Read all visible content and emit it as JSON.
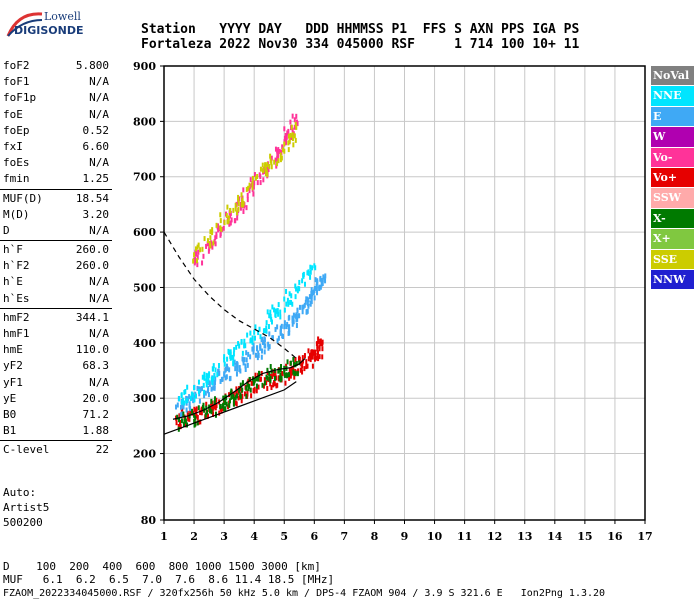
{
  "logo": {
    "line1": "Lowell",
    "line2": "DIGISONDE"
  },
  "header": {
    "line1": "Station   YYYY DAY   DDD HHMMSS P1  FFS S AXN PPS IGA PS",
    "line2": "Fortaleza 2022 Nov30 334 045000 RSF     1 714 100 10+ 11"
  },
  "params": [
    {
      "group": [
        {
          "k": "foF2",
          "v": "5.800"
        },
        {
          "k": "foF1",
          "v": "N/A"
        },
        {
          "k": "foF1p",
          "v": "N/A"
        },
        {
          "k": "foE",
          "v": "N/A"
        },
        {
          "k": "foEp",
          "v": "0.52"
        },
        {
          "k": "fxI",
          "v": "6.60"
        },
        {
          "k": "foEs",
          "v": "N/A"
        },
        {
          "k": "fmin",
          "v": "1.25"
        }
      ]
    },
    {
      "group": [
        {
          "k": "MUF(D)",
          "v": "18.54"
        },
        {
          "k": "M(D)",
          "v": "3.20"
        },
        {
          "k": "D",
          "v": "N/A"
        }
      ]
    },
    {
      "group": [
        {
          "k": "h`F",
          "v": "260.0"
        },
        {
          "k": "h`F2",
          "v": "260.0"
        },
        {
          "k": "h`E",
          "v": "N/A"
        },
        {
          "k": "h`Es",
          "v": "N/A"
        }
      ]
    },
    {
      "group": [
        {
          "k": "hmF2",
          "v": "344.1"
        },
        {
          "k": "hmF1",
          "v": "N/A"
        },
        {
          "k": "hmE",
          "v": "110.0"
        },
        {
          "k": "yF2",
          "v": "68.3"
        },
        {
          "k": "yF1",
          "v": "N/A"
        },
        {
          "k": "yE",
          "v": "20.0"
        },
        {
          "k": "B0",
          "v": "71.2"
        },
        {
          "k": "B1",
          "v": "1.88"
        }
      ]
    },
    {
      "group": [
        {
          "k": "C-level",
          "v": "22"
        }
      ]
    }
  ],
  "auto": [
    "Auto:",
    "Artist5",
    "500200"
  ],
  "bottom": {
    "d_row": "D    100  200  400  600  800 1000 1500 3000 [km]",
    "muf_row": "MUF   6.1  6.2  6.5  7.0  7.6  8.6 11.4 18.5 [MHz]",
    "footer": "FZAOM_2022334045000.RSF / 320fx256h 50 kHz 5.0 km / DPS-4 FZAOM 904 / 3.9 S 321.6 E   Ion2Png 1.3.20"
  },
  "legend": [
    {
      "label": "NoVal",
      "color": "#808080"
    },
    {
      "label": "NNE",
      "color": "#00e5ff"
    },
    {
      "label": "E",
      "color": "#3fa9f5"
    },
    {
      "label": "W",
      "color": "#b000b0"
    },
    {
      "label": "Vo-",
      "color": "#ff3399"
    },
    {
      "label": "Vo+",
      "color": "#e60000"
    },
    {
      "label": "SSW",
      "color": "#ffaaaa"
    },
    {
      "label": "X-",
      "color": "#007a00"
    },
    {
      "label": "X+",
      "color": "#80c840"
    },
    {
      "label": "SSE",
      "color": "#cccc00"
    },
    {
      "label": "NNW",
      "color": "#2020d0"
    }
  ],
  "chart_data": {
    "type": "scatter",
    "xlabel": "",
    "ylabel": "",
    "xlim": [
      1,
      17
    ],
    "ylim": [
      80,
      900
    ],
    "xticks": [
      1,
      2,
      3,
      4,
      5,
      6,
      7,
      8,
      9,
      10,
      11,
      12,
      13,
      14,
      15,
      16,
      17
    ],
    "yticks": [
      80,
      200,
      300,
      400,
      500,
      600,
      700,
      800,
      900
    ],
    "grid": true,
    "legend_placement": "right",
    "traces": [
      {
        "name": "",
        "color": "#e60000",
        "x": [
          1.4,
          1.8,
          2.2,
          2.6,
          3.0,
          3.4,
          3.8,
          4.2,
          4.6,
          5.0,
          5.3,
          5.6,
          5.9,
          6.1,
          6.2
        ],
        "y": [
          265,
          270,
          275,
          285,
          295,
          310,
          325,
          335,
          340,
          345,
          355,
          365,
          380,
          390,
          400
        ]
      },
      {
        "name": "",
        "color": "#3fa9f5",
        "x": [
          1.4,
          1.8,
          2.2,
          2.6,
          3.0,
          3.4,
          3.8,
          4.2,
          4.6,
          5.0,
          5.3,
          5.6,
          5.9,
          6.1,
          6.3
        ],
        "y": [
          285,
          300,
          315,
          330,
          345,
          360,
          380,
          395,
          410,
          430,
          445,
          465,
          490,
          510,
          520
        ]
      },
      {
        "name": "",
        "color": "#00e5ff",
        "x": [
          1.5,
          2.0,
          2.5,
          3.0,
          3.5,
          4.0,
          4.5,
          5.0,
          5.5,
          6.0
        ],
        "y": [
          300,
          320,
          345,
          370,
          395,
          420,
          450,
          480,
          510,
          540
        ]
      },
      {
        "name": "",
        "color": "#ff3399",
        "x": [
          2.0,
          2.4,
          2.8,
          3.2,
          3.6,
          4.0,
          4.4,
          4.8,
          5.1,
          5.4
        ],
        "y": [
          550,
          575,
          605,
          630,
          660,
          690,
          720,
          750,
          780,
          810
        ]
      },
      {
        "name": "",
        "color": "#007a00",
        "x": [
          1.5,
          2.0,
          2.5,
          3.0,
          3.5,
          4.0,
          4.5,
          5.0,
          5.5
        ],
        "y": [
          262,
          270,
          285,
          300,
          315,
          330,
          345,
          355,
          365
        ]
      },
      {
        "name": "",
        "color": "#cccc00",
        "x": [
          2.0,
          2.6,
          3.2,
          3.8,
          4.4,
          5.0,
          5.4
        ],
        "y": [
          560,
          600,
          640,
          680,
          720,
          760,
          790
        ]
      }
    ],
    "lines": [
      {
        "name": "",
        "style": "solid",
        "color": "#000000",
        "x": [
          1.0,
          1.5,
          2.0,
          2.5,
          3.0,
          3.5,
          4.0,
          4.5,
          5.0,
          5.4
        ],
        "y": [
          235,
          245,
          255,
          265,
          275,
          285,
          295,
          305,
          315,
          330
        ]
      },
      {
        "name": "",
        "style": "solid",
        "color": "#000000",
        "x": [
          1.3,
          1.8,
          2.3,
          2.8,
          3.3,
          3.8,
          4.3,
          4.8,
          5.2,
          5.5,
          5.7
        ],
        "y": [
          262,
          268,
          278,
          292,
          310,
          330,
          345,
          352,
          355,
          362,
          372
        ]
      },
      {
        "name": "",
        "style": "dashed",
        "color": "#000000",
        "x": [
          1.0,
          1.5,
          2.0,
          2.5,
          3.0,
          3.5,
          4.0,
          4.5,
          5.0,
          5.4
        ],
        "y": [
          600,
          555,
          515,
          485,
          460,
          440,
          425,
          410,
          390,
          372
        ]
      }
    ]
  }
}
